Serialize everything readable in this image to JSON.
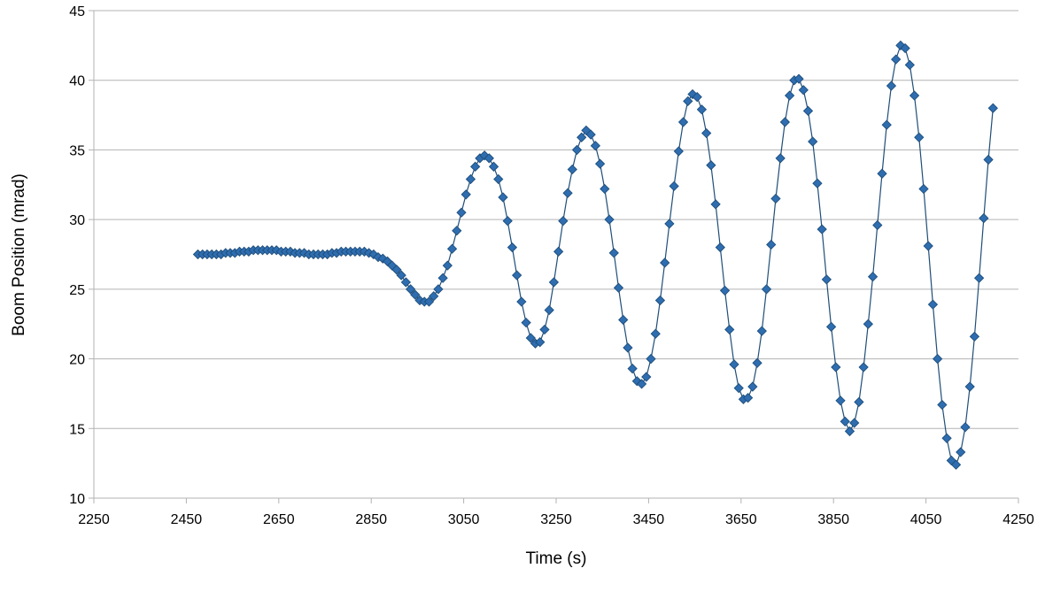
{
  "chart_data": {
    "type": "scatter",
    "title": "",
    "xlabel": "Time (s)",
    "ylabel": "Boom Position (mrad)",
    "xlim": [
      2250,
      4250
    ],
    "ylim": [
      10,
      45
    ],
    "x_ticks": [
      "2250",
      "2450",
      "2650",
      "2850",
      "3050",
      "3250",
      "3450",
      "3650",
      "3850",
      "4050",
      "4250"
    ],
    "y_ticks": [
      "10",
      "15",
      "20",
      "25",
      "30",
      "35",
      "40",
      "45"
    ],
    "grid": "horizontal",
    "legend": "none",
    "marker": "diamond",
    "connected": true,
    "line_color": "#1f4e79",
    "marker_color": "#2e6db0",
    "series": [
      {
        "x_start": 2475,
        "x_step": 10,
        "values": [
          27.5,
          27.5,
          27.5,
          27.5,
          27.5,
          27.5,
          27.6,
          27.6,
          27.6,
          27.7,
          27.7,
          27.7,
          27.8,
          27.8,
          27.8,
          27.8,
          27.8,
          27.8,
          27.7,
          27.7,
          27.7,
          27.6,
          27.6,
          27.6,
          27.5,
          27.5,
          27.5,
          27.5,
          27.5,
          27.6,
          27.6,
          27.7,
          27.7,
          27.7,
          27.7,
          27.7,
          27.7,
          27.6,
          27.5,
          27.3,
          27.2,
          27.0,
          26.7,
          26.4,
          26.0,
          25.5,
          25.0,
          24.6,
          24.2,
          24.1,
          24.1,
          24.5,
          25.0,
          25.8,
          26.7,
          27.9,
          29.2,
          30.5,
          31.8,
          32.9,
          33.8,
          34.4,
          34.6,
          34.4,
          33.8,
          32.9,
          31.6,
          29.9,
          28.0,
          26.0,
          24.1,
          22.6,
          21.5,
          21.1,
          21.2,
          22.1,
          23.5,
          25.5,
          27.7,
          29.9,
          31.9,
          33.6,
          35.0,
          35.9,
          36.4,
          36.1,
          35.3,
          34.0,
          32.2,
          30.0,
          27.6,
          25.1,
          22.8,
          20.8,
          19.3,
          18.4,
          18.2,
          18.7,
          20.0,
          21.8,
          24.2,
          26.9,
          29.7,
          32.4,
          34.9,
          37.0,
          38.5,
          39.0,
          38.8,
          37.9,
          36.2,
          33.9,
          31.1,
          28.0,
          24.9,
          22.1,
          19.6,
          17.9,
          17.1,
          17.2,
          18.0,
          19.7,
          22.0,
          25.0,
          28.2,
          31.5,
          34.4,
          37.0,
          38.9,
          40.0,
          40.1,
          39.3,
          37.8,
          35.6,
          32.6,
          29.3,
          25.7,
          22.3,
          19.4,
          17.0,
          15.5,
          14.8,
          15.4,
          16.9,
          19.4,
          22.5,
          25.9,
          29.6,
          33.3,
          36.8,
          39.6,
          41.5,
          42.5,
          42.3,
          41.1,
          38.9,
          35.9,
          32.2,
          28.1,
          23.9,
          20.0,
          16.7,
          14.3,
          12.7,
          12.4,
          13.3,
          15.1,
          18.0,
          21.6,
          25.8,
          30.1,
          34.3,
          38.0
        ]
      }
    ]
  }
}
